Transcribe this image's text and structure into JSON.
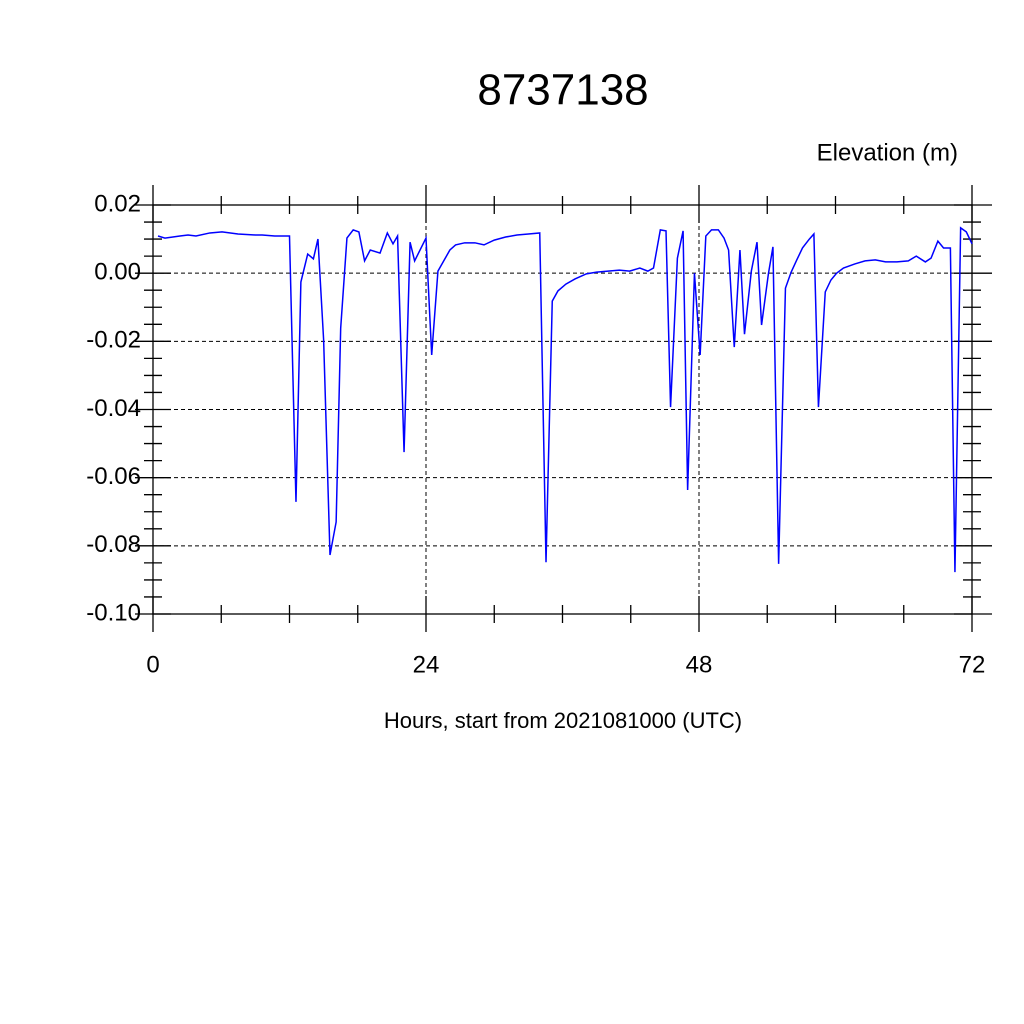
{
  "chart_data": {
    "type": "line",
    "title": "8737138",
    "subtitle": "Elevation (m)",
    "x_label": "Hours, start from 2021081000 (UTC)",
    "xlim": [
      0,
      72
    ],
    "xticks": [
      0,
      24,
      48,
      72
    ],
    "ylim": [
      -0.1,
      0.02
    ],
    "yticks": [
      0.02,
      {
        "value": 0,
        "label": "0.00"
      },
      -0.02,
      -0.04,
      -0.06,
      -0.08,
      {
        "value": -0.1,
        "label": "-0.10"
      }
    ],
    "grid": true,
    "series": [
      {
        "name": "Elevation",
        "color": "#0000ff",
        "x": [
          0.44,
          1.05,
          2.37,
          3.08,
          3.78,
          5.0,
          6.07,
          7.47,
          9.0,
          9.6,
          10.7,
          12.0,
          12.57,
          13.0,
          13.6,
          14.1,
          14.5,
          15.0,
          15.56,
          16.1,
          16.5,
          17.05,
          17.6,
          18.1,
          18.6,
          19.1,
          19.96,
          20.6,
          21.1,
          21.5,
          22.07,
          22.6,
          23.0,
          24.0,
          24.5,
          25.05,
          26.1,
          26.6,
          27.4,
          28.3,
          29.1,
          30.0,
          31.0,
          32.0,
          33.0,
          34.0,
          34.55,
          35.1,
          35.6,
          36.3,
          37.1,
          38.1,
          39.0,
          40.0,
          41.0,
          41.9,
          42.8,
          43.5,
          44.0,
          44.6,
          45.1,
          45.5,
          46.1,
          46.6,
          47.0,
          47.6,
          48.1,
          48.6,
          49.1,
          49.7,
          50.2,
          50.6,
          51.1,
          51.6,
          52.0,
          52.6,
          53.1,
          53.5,
          54.1,
          54.5,
          55.0,
          55.6,
          56.1,
          56.6,
          57.1,
          57.7,
          58.1,
          58.5,
          59.1,
          59.6,
          60.1,
          60.7,
          61.7,
          62.6,
          63.5,
          64.4,
          65.4,
          66.4,
          67.1,
          67.9,
          68.4,
          69.0,
          69.5,
          70.1,
          70.5,
          71.0,
          71.5,
          72.0
        ],
        "values": [
          0.0109,
          0.0103,
          0.0109,
          0.0112,
          0.0109,
          0.0118,
          0.0121,
          0.0115,
          0.0112,
          0.0112,
          0.0109,
          0.0109,
          -0.0671,
          -0.0026,
          0.0056,
          0.0042,
          0.01,
          -0.0196,
          -0.0827,
          -0.073,
          -0.0161,
          0.0103,
          0.0127,
          0.0121,
          0.0036,
          0.0068,
          0.0059,
          0.0118,
          0.0086,
          0.0109,
          -0.0525,
          0.0091,
          0.0036,
          0.0103,
          -0.024,
          0.0006,
          0.0068,
          0.0083,
          0.0089,
          0.0089,
          0.0083,
          0.0097,
          0.0106,
          0.0112,
          0.0115,
          0.0118,
          -0.0848,
          -0.0082,
          -0.0052,
          -0.0032,
          -0.0017,
          -0.0002,
          0.0003,
          0.0006,
          0.0009,
          0.0006,
          0.0015,
          0.0006,
          0.0015,
          0.0127,
          0.0124,
          -0.0393,
          0.0044,
          0.0124,
          -0.0636,
          0.0,
          -0.024,
          0.0109,
          0.0127,
          0.0127,
          0.0103,
          0.0068,
          -0.0217,
          0.0068,
          -0.0179,
          0.0006,
          0.0091,
          -0.0152,
          -0.0002,
          0.0077,
          -0.0853,
          -0.0044,
          0.0003,
          0.0039,
          0.0074,
          0.01,
          0.0115,
          -0.0393,
          -0.0055,
          -0.002,
          0.0,
          0.0015,
          0.0027,
          0.0036,
          0.0039,
          0.0033,
          0.0033,
          0.0036,
          0.005,
          0.0033,
          0.0044,
          0.0094,
          0.0074,
          0.0074,
          -0.0877,
          0.0133,
          0.0121,
          0.0086
        ]
      }
    ]
  }
}
